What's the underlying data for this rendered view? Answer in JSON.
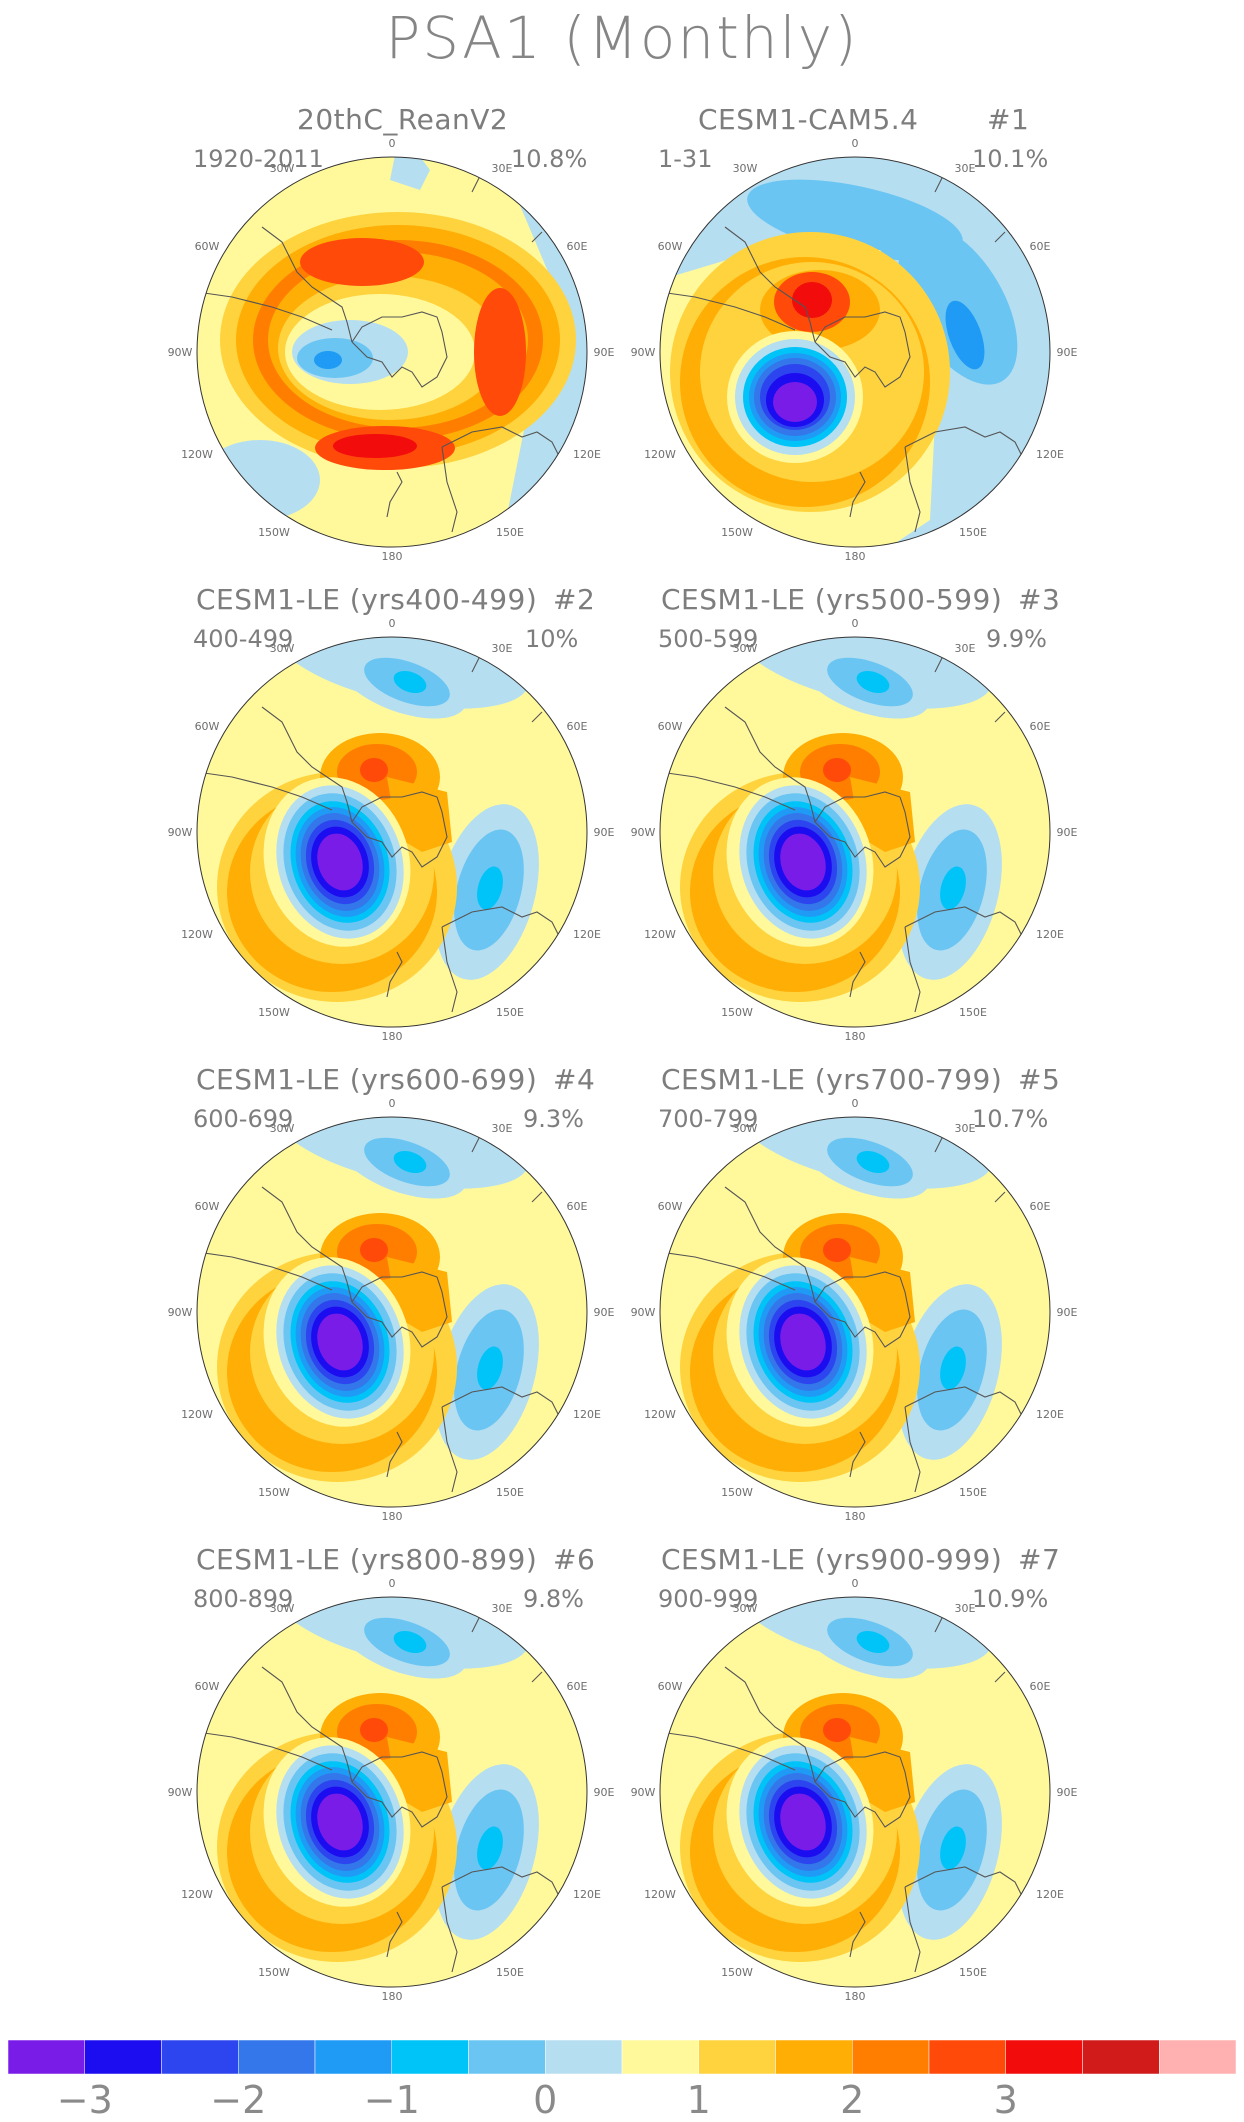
{
  "title": "PSA1 (Monthly)",
  "palette": {
    "levels": [
      "#7A1CE8",
      "#1C0CF0",
      "#2D45EE",
      "#3377EA",
      "#1F9BF5",
      "#00C4F7",
      "#6BC5F2",
      "#B5DEF1",
      "#FFF99B",
      "#FFD33E",
      "#FFAE05",
      "#FF7E00",
      "#FF4A0A",
      "#F20C0C",
      "#D11A1A",
      "#FFB0B0"
    ]
  },
  "colorbar": {
    "tick_labels": [
      "−3",
      "−2",
      "−1",
      "0",
      "1",
      "2",
      "3"
    ]
  },
  "map_labels": {
    "lon_0": "0",
    "lon_30w": "30W",
    "lon_30e": "30E",
    "lon_60w": "60W",
    "lon_60e": "60E",
    "lon_90w": "90W",
    "lon_90e": "90E",
    "lon_120w": "120W",
    "lon_120e": "120E",
    "lon_150w": "150W",
    "lon_150e": "150E",
    "lon_180": "180"
  },
  "panels": [
    {
      "title": "20thC_ReanV2",
      "number": "",
      "years": "1920-2011",
      "variance": "10.8%"
    },
    {
      "title": "CESM1-CAM5.4",
      "number": "#1",
      "years": "1-31",
      "variance": "10.1%"
    },
    {
      "title": "CESM1-LE (yrs400-499)",
      "number": "#2",
      "years": "400-499",
      "variance": "10%"
    },
    {
      "title": "CESM1-LE (yrs500-599)",
      "number": "#3",
      "years": "500-599",
      "variance": "9.9%"
    },
    {
      "title": "CESM1-LE (yrs600-699)",
      "number": "#4",
      "years": "600-699",
      "variance": "9.3%"
    },
    {
      "title": "CESM1-LE (yrs700-799)",
      "number": "#5",
      "years": "700-799",
      "variance": "10.7%"
    },
    {
      "title": "CESM1-LE (yrs800-899)",
      "number": "#6",
      "years": "800-899",
      "variance": "9.8%"
    },
    {
      "title": "CESM1-LE (yrs900-999)",
      "number": "#7",
      "years": "900-999",
      "variance": "10.9%"
    }
  ]
}
